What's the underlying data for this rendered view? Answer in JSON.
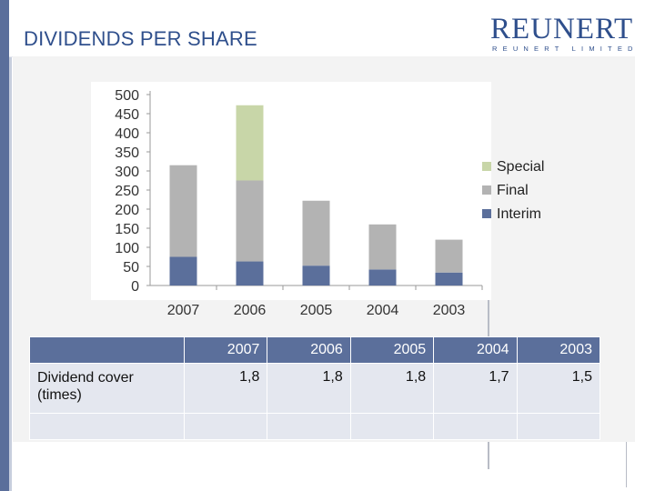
{
  "slide": {
    "title": "DIVIDENDS PER SHARE",
    "logo_text": "REUNERT",
    "logo_subtext": "REUNERT LIMITED"
  },
  "colors": {
    "accent": "#5b6f9b",
    "title": "#2f4f8c",
    "special": "#c8d6a8",
    "final": "#b3b3b3",
    "interim": "#5b6f9b"
  },
  "chart_data": {
    "type": "bar",
    "stacked": true,
    "categories": [
      "2007",
      "2006",
      "2005",
      "2004",
      "2003"
    ],
    "series": [
      {
        "name": "Interim",
        "values": [
          75,
          63,
          52,
          42,
          34
        ]
      },
      {
        "name": "Final",
        "values": [
          240,
          212,
          170,
          118,
          86
        ]
      },
      {
        "name": "Special",
        "values": [
          0,
          197,
          0,
          0,
          0
        ]
      }
    ],
    "ylim": [
      0,
      500
    ],
    "yticks": [
      0,
      50,
      100,
      150,
      200,
      250,
      300,
      350,
      400,
      450,
      500
    ],
    "legend_placement": "right",
    "legend_order": [
      "Special",
      "Final",
      "Interim"
    ],
    "grid": false
  },
  "table": {
    "headers": [
      "",
      "2007",
      "2006",
      "2005",
      "2004",
      "2003"
    ],
    "rows": [
      {
        "label": "Dividend cover (times)",
        "values": [
          "1,8",
          "1,8",
          "1,8",
          "1,7",
          "1,5"
        ]
      }
    ]
  }
}
